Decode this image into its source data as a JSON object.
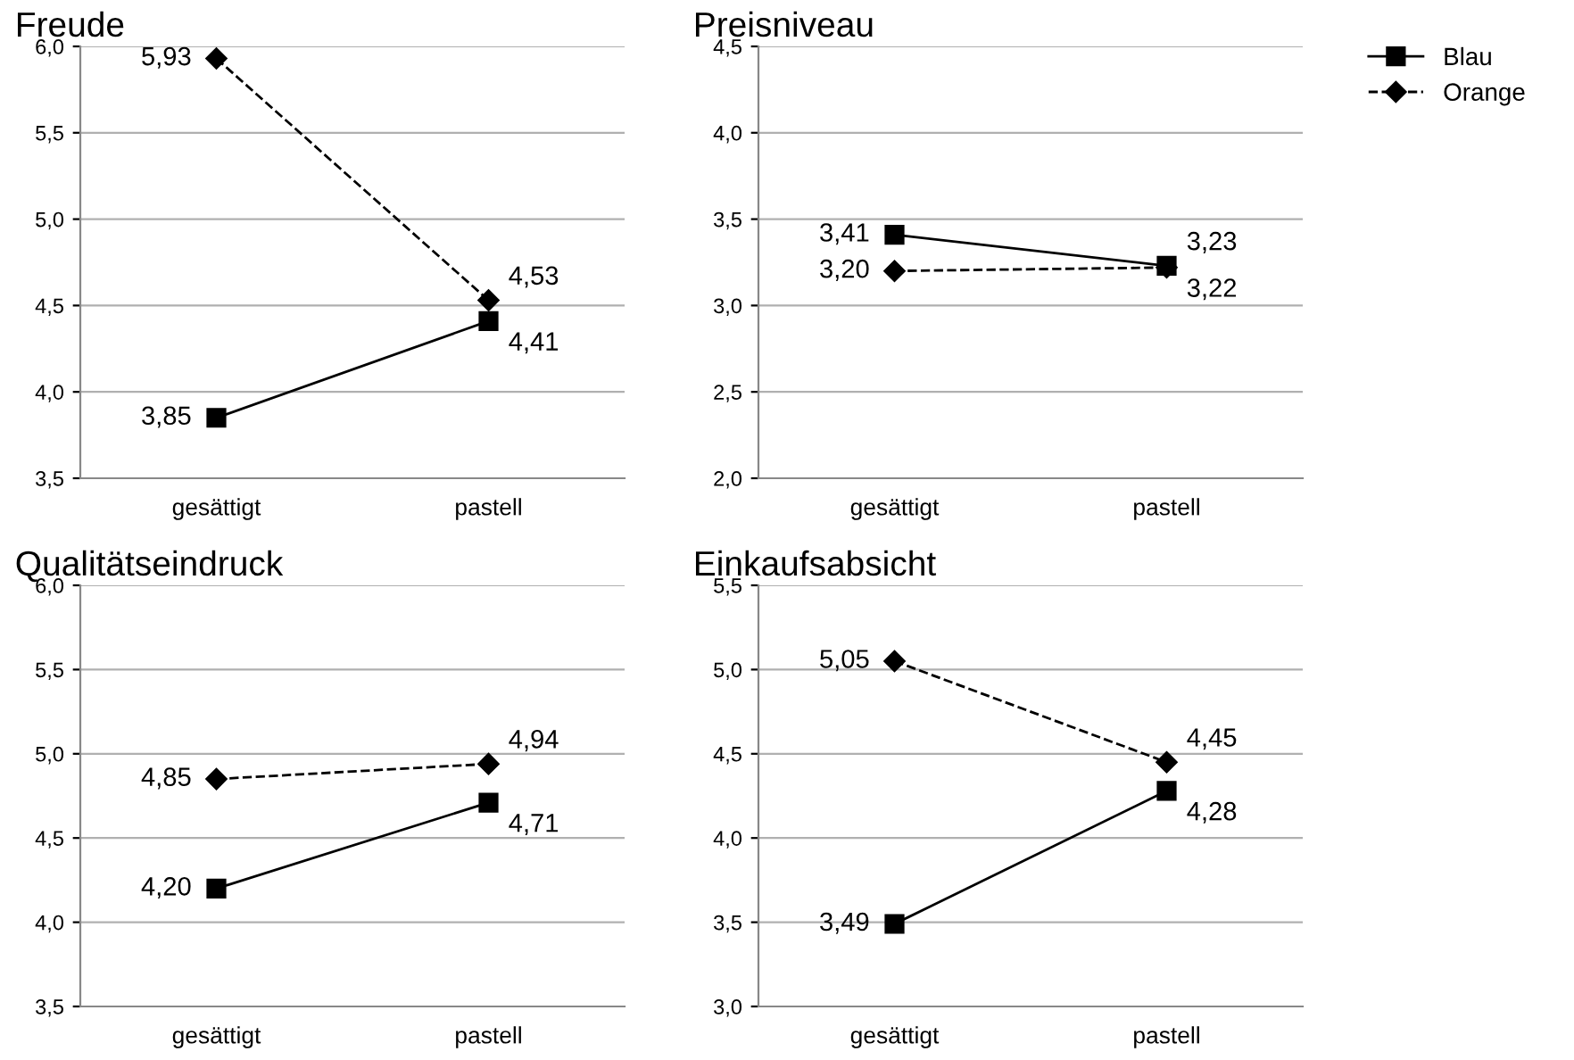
{
  "chart_data": [
    {
      "type": "line",
      "title": "Freude",
      "categories": [
        "gesättigt",
        "pastell"
      ],
      "ylim": [
        3.5,
        6.0
      ],
      "yticks": [
        {
          "value": 3.5,
          "label": "3,5"
        },
        {
          "value": 4.0,
          "label": "4,0"
        },
        {
          "value": 4.5,
          "label": "4,5"
        },
        {
          "value": 5.0,
          "label": "5,0"
        },
        {
          "value": 5.5,
          "label": "5,5"
        },
        {
          "value": 6.0,
          "label": "6,0"
        }
      ],
      "grid": "y",
      "legend": false,
      "series": [
        {
          "color": "#000000",
          "marker": "square",
          "line_style": "solid",
          "values": [
            3.85,
            4.41
          ],
          "value_labels": [
            "3,85",
            "4,41"
          ]
        },
        {
          "color": "#000000",
          "marker": "diamond",
          "line_style": "dashed",
          "values": [
            5.93,
            4.53
          ],
          "value_labels": [
            "5,93",
            "4,53"
          ]
        }
      ]
    },
    {
      "type": "line",
      "title": "Preisniveau",
      "categories": [
        "gesättigt",
        "pastell"
      ],
      "ylim": [
        2.0,
        4.5
      ],
      "yticks": [
        {
          "value": 2.0,
          "label": "2,0"
        },
        {
          "value": 2.5,
          "label": "2,5"
        },
        {
          "value": 3.0,
          "label": "3,0"
        },
        {
          "value": 3.5,
          "label": "3,5"
        },
        {
          "value": 4.0,
          "label": "4,0"
        },
        {
          "value": 4.5,
          "label": "4,5"
        }
      ],
      "grid": "y",
      "legend": "right",
      "series": [
        {
          "name": "Blau",
          "color": "#000000",
          "marker": "square",
          "line_style": "solid",
          "values": [
            3.41,
            3.23
          ],
          "value_labels": [
            "3,41",
            "3,23"
          ]
        },
        {
          "name": "Orange",
          "color": "#000000",
          "marker": "diamond",
          "line_style": "dashed",
          "values": [
            3.2,
            3.22
          ],
          "value_labels": [
            "3,20",
            "3,22"
          ]
        }
      ]
    },
    {
      "type": "line",
      "title": "Qualitätseindruck",
      "categories": [
        "gesättigt",
        "pastell"
      ],
      "ylim": [
        3.5,
        6.0
      ],
      "yticks": [
        {
          "value": 3.5,
          "label": "3,5"
        },
        {
          "value": 4.0,
          "label": "4,0"
        },
        {
          "value": 4.5,
          "label": "4,5"
        },
        {
          "value": 5.0,
          "label": "5,0"
        },
        {
          "value": 5.5,
          "label": "5,5"
        },
        {
          "value": 6.0,
          "label": "6,0"
        }
      ],
      "grid": "y",
      "legend": false,
      "series": [
        {
          "color": "#000000",
          "marker": "square",
          "line_style": "solid",
          "values": [
            4.2,
            4.71
          ],
          "value_labels": [
            "4,20",
            "4,71"
          ]
        },
        {
          "color": "#000000",
          "marker": "diamond",
          "line_style": "dashed",
          "values": [
            4.85,
            4.94
          ],
          "value_labels": [
            "4,85",
            "4,94"
          ]
        }
      ]
    },
    {
      "type": "line",
      "title": "Einkaufsabsicht",
      "categories": [
        "gesättigt",
        "pastell"
      ],
      "ylim": [
        3.0,
        5.5
      ],
      "yticks": [
        {
          "value": 3.0,
          "label": "3,0"
        },
        {
          "value": 3.5,
          "label": "3,5"
        },
        {
          "value": 4.0,
          "label": "4,0"
        },
        {
          "value": 4.5,
          "label": "4,5"
        },
        {
          "value": 5.0,
          "label": "5,0"
        },
        {
          "value": 5.5,
          "label": "5,5"
        }
      ],
      "grid": "y",
      "legend": false,
      "series": [
        {
          "color": "#000000",
          "marker": "square",
          "line_style": "solid",
          "values": [
            3.49,
            4.28
          ],
          "value_labels": [
            "3,49",
            "4,28"
          ]
        },
        {
          "color": "#000000",
          "marker": "diamond",
          "line_style": "dashed",
          "values": [
            5.05,
            4.45
          ],
          "value_labels": [
            "5,05",
            "4,45"
          ]
        }
      ]
    }
  ]
}
